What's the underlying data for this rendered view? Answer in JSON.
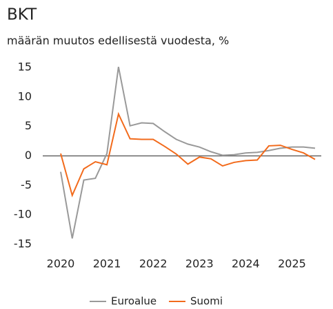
{
  "chart_data": {
    "type": "line",
    "title": "BKT",
    "subtitle": "määrän muutos edellisestä vuodesta, %",
    "categories": [
      "2020",
      null,
      null,
      null,
      "2021",
      null,
      null,
      null,
      "2022",
      null,
      null,
      null,
      "2023",
      null,
      null,
      null,
      "2024",
      null,
      null,
      null,
      "2025",
      null,
      null
    ],
    "series": [
      {
        "name": "Euroalue",
        "color": "#999999",
        "values": [
          -2.7,
          -14.0,
          -4.1,
          -3.8,
          0.4,
          15.1,
          5.1,
          5.6,
          5.5,
          4.1,
          2.8,
          2.0,
          1.5,
          0.7,
          0.1,
          0.2,
          0.5,
          0.6,
          0.9,
          1.3,
          1.5,
          1.5,
          1.3
        ]
      },
      {
        "name": "Suomi",
        "color": "#f26a1b",
        "values": [
          0.4,
          -6.7,
          -2.2,
          -1.0,
          -1.5,
          7.1,
          2.9,
          2.8,
          2.8,
          1.6,
          0.3,
          -1.4,
          -0.2,
          -0.5,
          -1.7,
          -1.1,
          -0.8,
          -0.7,
          1.7,
          1.8,
          1.1,
          0.5,
          -0.6
        ]
      }
    ],
    "ylim": [
      -15,
      15
    ],
    "yticks": [
      -15,
      -10,
      -5,
      0,
      5,
      10,
      15
    ],
    "legend": "bottom"
  }
}
